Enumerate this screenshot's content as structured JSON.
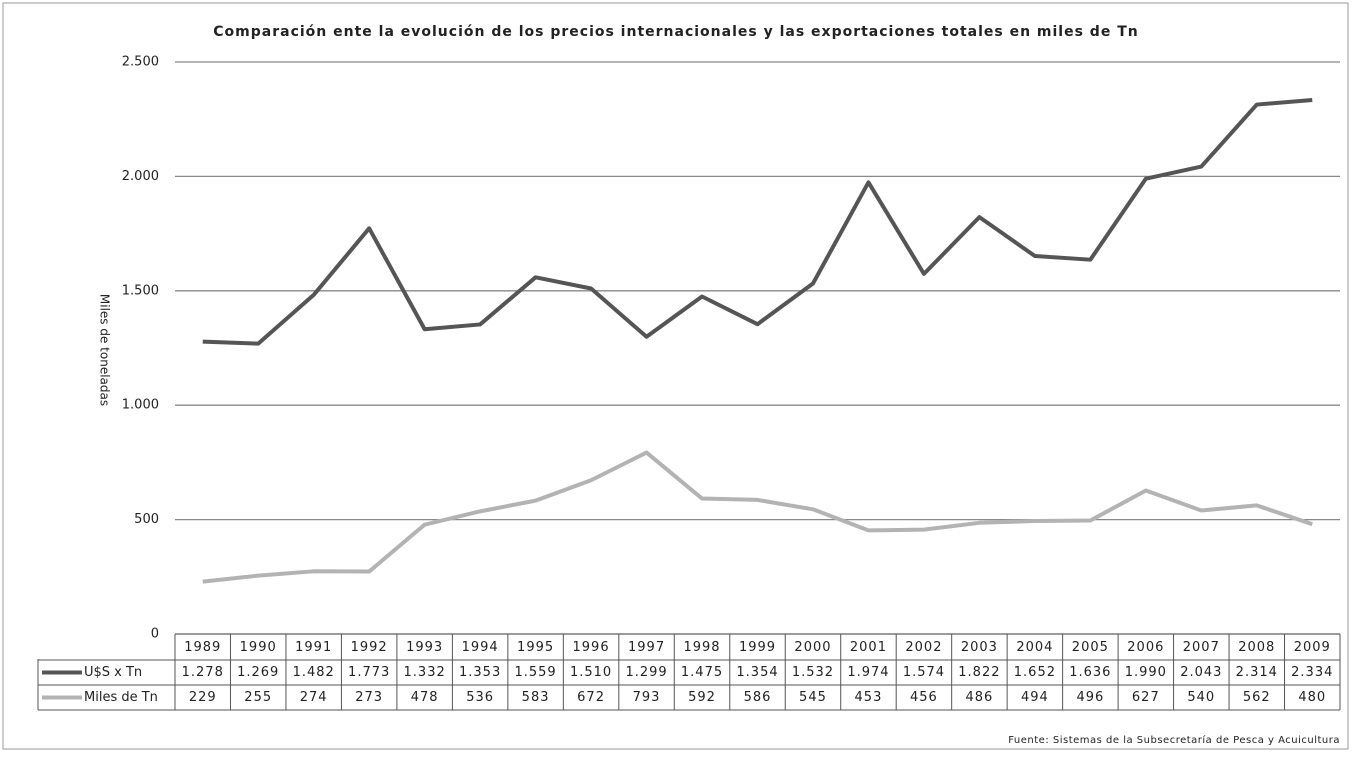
{
  "chart_data": {
    "type": "line",
    "title": "Comparación ente la evolución de los precios internacionales y las exportaciones totales en miles de Tn",
    "y_label": "Miles de toneladas",
    "source": "Fuente: Sistemas de la Subsecretaría de Pesca y Acuicultura",
    "categories": [
      "1989",
      "1990",
      "1991",
      "1992",
      "1993",
      "1994",
      "1995",
      "1996",
      "1997",
      "1998",
      "1999",
      "2000",
      "2001",
      "2002",
      "2003",
      "2004",
      "2005",
      "2006",
      "2007",
      "2008",
      "2009"
    ],
    "series": [
      {
        "name": "U$S x Tn",
        "color": "#555555",
        "values": [
          1278,
          1269,
          1482,
          1773,
          1332,
          1353,
          1559,
          1510,
          1299,
          1475,
          1354,
          1532,
          1974,
          1574,
          1822,
          1652,
          1636,
          1990,
          2043,
          2314,
          2334
        ],
        "value_labels": [
          "1.278",
          "1.269",
          "1.482",
          "1.773",
          "1.332",
          "1.353",
          "1.559",
          "1.510",
          "1.299",
          "1.475",
          "1.354",
          "1.532",
          "1.974",
          "1.574",
          "1.822",
          "1.652",
          "1.636",
          "1.990",
          "2.043",
          "2.314",
          "2.334"
        ]
      },
      {
        "name": "Miles de Tn",
        "color": "#b3b3b3",
        "values": [
          229,
          255,
          274,
          273,
          478,
          536,
          583,
          672,
          793,
          592,
          586,
          545,
          453,
          456,
          486,
          494,
          496,
          627,
          540,
          562,
          480
        ]
      }
    ],
    "ylim": [
      0,
      2500
    ],
    "yticks": [
      0,
      500,
      {
        "value": 1000,
        "label": "1.000"
      },
      {
        "value": 1500,
        "label": "1.500"
      },
      {
        "value": 2000,
        "label": "2.000"
      },
      {
        "value": 2500,
        "label": "2.500"
      }
    ],
    "grid": true
  }
}
